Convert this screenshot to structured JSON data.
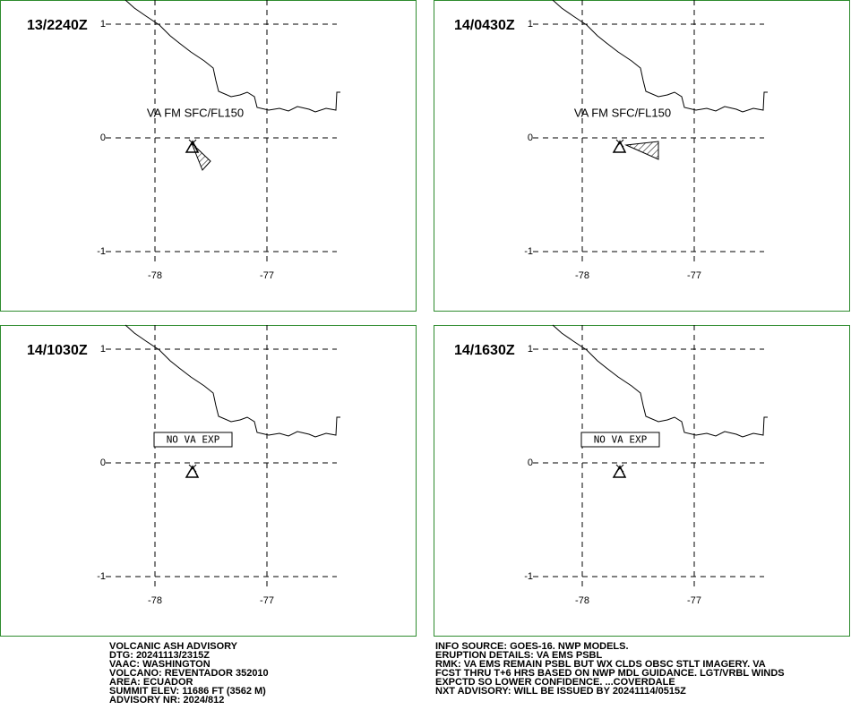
{
  "panels": [
    {
      "time": "13/2240Z",
      "va_text": "VA FM SFC/FL150"
    },
    {
      "time": "14/0430Z",
      "va_text": "VA FM SFC/FL150"
    },
    {
      "time": "14/1030Z",
      "notice": "NO VA EXP"
    },
    {
      "time": "14/1630Z",
      "notice": "NO VA EXP"
    }
  ],
  "lat_ticks": [
    1,
    0,
    -1
  ],
  "lon_ticks": [
    -78,
    -77
  ],
  "advisory_left": [
    "VOLCANIC ASH ADVISORY",
    "DTG: 20241113/2315Z",
    "VAAC: WASHINGTON",
    "VOLCANO: REVENTADOR 352010",
    "AREA: ECUADOR",
    "SUMMIT ELEV: 11686 FT (3562 M)",
    "ADVISORY NR: 2024/812"
  ],
  "advisory_right": [
    "INFO SOURCE: GOES-16. NWP MODELS.",
    "ERUPTION DETAILS: VA EMS PSBL",
    "RMK: VA EMS REMAIN PSBL BUT WX CLDS OBSC STLT IMAGERY. VA",
    "FCST THRU T+6 HRS BASED ON NWP MDL GUIDANCE. LGT/VRBL WINDS",
    "EXPCTD SO LOWER CONFIDENCE. ...COVERDALE",
    "NXT ADVISORY: WILL BE ISSUED BY 20241114/0515Z"
  ]
}
